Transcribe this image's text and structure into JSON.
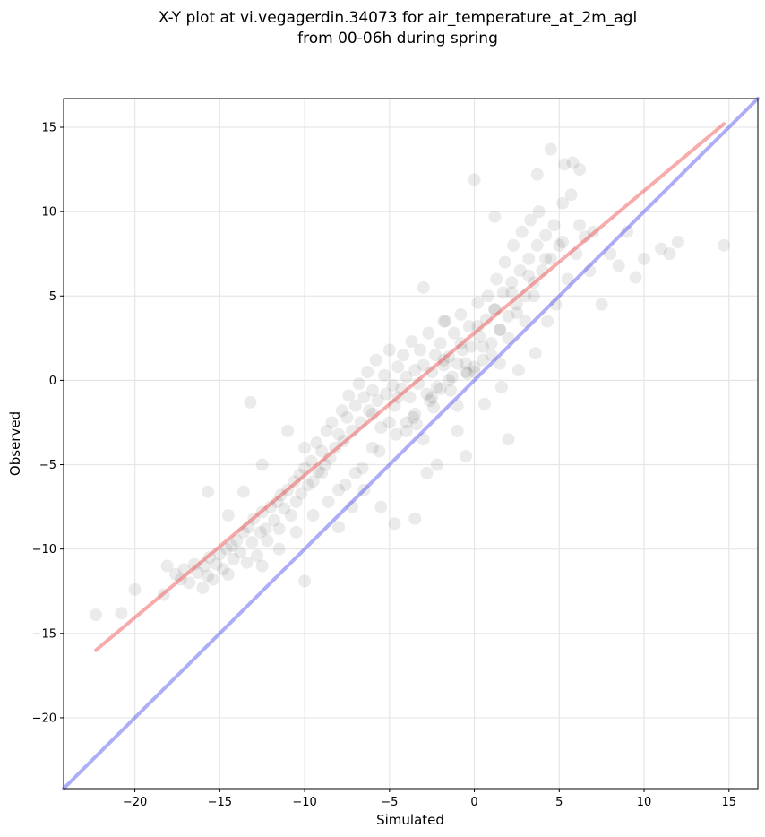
{
  "chart_data": {
    "type": "scatter",
    "title": "X-Y plot at vi.vegagerdin.34073 for air_temperature_at_2m_agl",
    "subtitle": "from 00-06h during spring",
    "xlabel": "Simulated",
    "ylabel": "Observed",
    "xlim": [
      -24.2,
      16.7
    ],
    "ylim": [
      -24.2,
      16.7
    ],
    "xticks": [
      -20,
      -15,
      -10,
      -5,
      0,
      5,
      10,
      15
    ],
    "yticks": [
      -20,
      -15,
      -10,
      -5,
      0,
      5,
      10,
      15
    ],
    "xtick_labels": [
      "−20",
      "−15",
      "−10",
      "−5",
      "0",
      "5",
      "10",
      "15"
    ],
    "ytick_labels": [
      "−20",
      "−15",
      "−10",
      "−5",
      "0",
      "5",
      "10",
      "15"
    ],
    "grid": true,
    "marker_color": "#000000",
    "marker_alpha": 0.08,
    "lines": [
      {
        "kind": "regression",
        "color": "#ee4444",
        "alpha": 0.45,
        "x": [
          -22.3,
          14.7
        ],
        "y": [
          -16.0,
          15.2
        ]
      },
      {
        "kind": "identity",
        "color": "#3333ee",
        "alpha": 0.4,
        "x": [
          -24.2,
          16.7
        ],
        "y": [
          -24.2,
          16.7
        ]
      }
    ],
    "points": {
      "x": [
        -22.3,
        -20.8,
        -20.0,
        -18.3,
        -18.1,
        -17.6,
        -17.3,
        -17.1,
        -16.8,
        -16.5,
        -16.3,
        -16.0,
        -15.9,
        -15.7,
        -15.6,
        -15.4,
        -15.2,
        -15.0,
        -14.8,
        -14.6,
        -14.5,
        -14.3,
        -14.2,
        -14.0,
        -13.8,
        -13.6,
        -13.4,
        -13.3,
        -13.1,
        -13.0,
        -12.8,
        -12.6,
        -12.5,
        -12.3,
        -12.2,
        -12.0,
        -11.8,
        -11.6,
        -11.5,
        -11.4,
        -11.2,
        -11.0,
        -10.8,
        -10.6,
        -10.5,
        -10.3,
        -10.2,
        -10.0,
        -10.0,
        -9.8,
        -9.6,
        -9.5,
        -9.3,
        -9.2,
        -9.0,
        -8.8,
        -8.7,
        -8.5,
        -8.4,
        -8.2,
        -8.0,
        -7.8,
        -7.7,
        -7.5,
        -7.4,
        -7.2,
        -7.0,
        -6.8,
        -6.7,
        -6.5,
        -6.3,
        -6.2,
        -6.0,
        -5.8,
        -5.7,
        -5.5,
        -5.3,
        -5.2,
        -5.0,
        -4.8,
        -4.7,
        -4.5,
        -4.3,
        -4.2,
        -4.0,
        -3.8,
        -3.7,
        -3.5,
        -3.3,
        -3.2,
        -3.0,
        -2.8,
        -2.7,
        -2.5,
        -2.3,
        -2.2,
        -2.0,
        -1.8,
        -1.7,
        -1.5,
        -1.3,
        -1.2,
        -1.0,
        -0.8,
        -0.7,
        -0.5,
        -0.3,
        -0.2,
        0.0,
        0.2,
        0.3,
        0.5,
        0.7,
        0.8,
        1.0,
        1.2,
        1.3,
        1.5,
        1.7,
        1.8,
        2.0,
        2.2,
        2.3,
        2.5,
        2.7,
        2.8,
        3.0,
        3.2,
        3.3,
        3.5,
        3.7,
        3.8,
        4.0,
        4.2,
        4.3,
        4.5,
        4.7,
        4.8,
        5.0,
        5.2,
        5.3,
        5.5,
        5.7,
        5.8,
        6.0,
        6.2,
        6.5,
        6.8,
        7.0,
        7.5,
        8.0,
        8.5,
        9.0,
        9.5,
        10.0,
        11.0,
        11.5,
        12.0,
        14.7,
        -13.2,
        -10.0,
        -15.7,
        -13.6,
        -3.5,
        -2.8,
        1.2,
        0.0,
        4.5,
        -2.2,
        3.7,
        -4.7,
        -8.0,
        -7.2,
        -4.0,
        -1.0,
        2.0,
        -0.5,
        1.5,
        -1.8,
        -3.0,
        -6.0,
        -9.0,
        -11.0,
        -12.5,
        -14.5,
        -5.5,
        -6.5,
        -4.5,
        -3.5,
        -2.5,
        -1.5,
        -0.5,
        0.5,
        1.5,
        2.5,
        3.5,
        -2.0,
        -1.0,
        0.0,
        1.0,
        2.0,
        3.0,
        -3.0,
        -4.0,
        -5.0,
        -6.0,
        -7.0,
        -8.0,
        -9.5,
        -10.5,
        -11.5,
        -12.5,
        -1.8,
        -0.8,
        0.2,
        1.2,
        2.2,
        3.2,
        4.2,
        5.2,
        6.2,
        -2.6,
        -3.6,
        -4.6,
        -5.6,
        -6.6,
        -7.6,
        -8.6,
        0.6,
        1.6,
        2.6,
        3.6,
        -0.4,
        -1.4,
        -2.4,
        -3.4
      ],
      "y": [
        -13.9,
        -13.8,
        -12.4,
        -12.7,
        -11.0,
        -11.5,
        -11.8,
        -11.2,
        -12.0,
        -10.9,
        -11.4,
        -12.3,
        -11.0,
        -11.6,
        -10.5,
        -11.8,
        -10.9,
        -10.3,
        -11.2,
        -10.0,
        -11.5,
        -9.8,
        -10.6,
        -9.5,
        -10.2,
        -9.0,
        -10.8,
        -8.7,
        -9.6,
        -8.2,
        -10.4,
        -9.0,
        -7.8,
        -8.8,
        -9.5,
        -7.5,
        -8.3,
        -7.2,
        -8.8,
        -6.8,
        -7.6,
        -6.5,
        -8.0,
        -6.0,
        -7.2,
        -5.6,
        -6.7,
        -5.2,
        -4.0,
        -6.2,
        -4.8,
        -6.0,
        -3.7,
        -5.4,
        -4.2,
        -5.0,
        -3.0,
        -4.6,
        -2.5,
        -4.0,
        -3.2,
        -1.8,
        -3.6,
        -2.2,
        -0.9,
        -3.0,
        -1.5,
        -0.2,
        -2.5,
        -1.0,
        0.5,
        -1.8,
        -0.6,
        1.2,
        -1.2,
        -2.8,
        0.3,
        -0.8,
        1.8,
        -0.3,
        -1.5,
        0.8,
        -0.5,
        1.5,
        0.2,
        -1.0,
        2.3,
        0.6,
        -0.2,
        1.8,
        0.9,
        -0.8,
        2.8,
        0.5,
        1.5,
        -0.4,
        2.2,
        0.9,
        3.5,
        1.4,
        0.2,
        2.8,
        1.0,
        3.9,
        1.8,
        0.5,
        3.2,
        2.0,
        0.8,
        4.6,
        2.6,
        1.2,
        3.6,
        5.0,
        2.2,
        4.2,
        6.0,
        3.0,
        5.2,
        7.0,
        3.8,
        5.8,
        8.0,
        4.5,
        6.5,
        8.8,
        5.0,
        7.2,
        9.5,
        5.8,
        8.0,
        10.0,
        6.5,
        8.6,
        3.5,
        7.2,
        9.2,
        4.5,
        8.0,
        10.5,
        12.8,
        6.0,
        11.0,
        12.9,
        7.5,
        12.5,
        8.5,
        6.5,
        8.8,
        4.5,
        7.5,
        6.8,
        8.8,
        6.1,
        7.2,
        7.8,
        7.5,
        8.2,
        8.0,
        -1.3,
        -11.9,
        -6.6,
        -6.6,
        -8.2,
        -5.5,
        9.7,
        11.9,
        13.7,
        -5.0,
        12.2,
        -8.5,
        -8.7,
        -7.5,
        -2.5,
        -3.0,
        -3.5,
        -4.5,
        1.0,
        3.5,
        5.5,
        -2.0,
        -5.5,
        -3.0,
        -5.0,
        -8.0,
        -7.5,
        -6.5,
        -1.0,
        -2.0,
        -1.0,
        0.0,
        1.0,
        2.0,
        3.0,
        4.0,
        5.0,
        -0.5,
        -1.5,
        0.5,
        1.5,
        2.5,
        3.5,
        -3.5,
        -3.0,
        -2.5,
        -4.0,
        -5.5,
        -6.5,
        -8.0,
        -9.0,
        -10.0,
        -11.0,
        1.2,
        2.2,
        3.2,
        4.2,
        5.2,
        6.2,
        7.2,
        8.2,
        9.2,
        -1.2,
        -2.2,
        -3.2,
        -4.2,
        -5.2,
        -6.2,
        -7.2,
        -1.4,
        -0.4,
        0.6,
        1.6,
        0.4,
        -0.6,
        -1.6,
        -2.6
      ]
    }
  }
}
